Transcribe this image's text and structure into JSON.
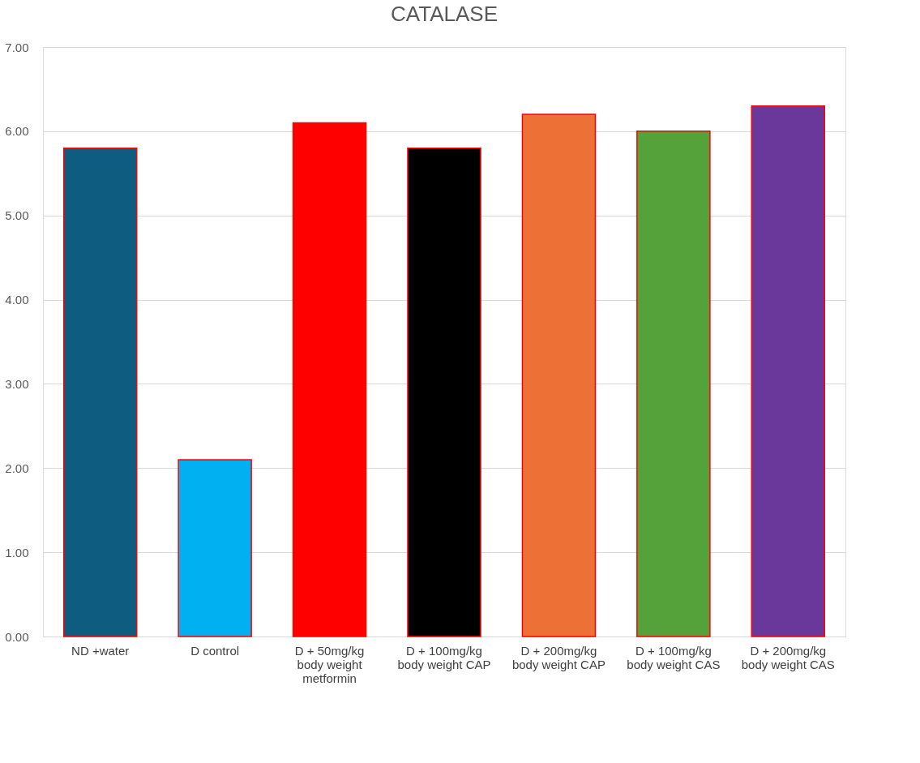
{
  "chart_data": {
    "type": "bar",
    "title": "CATALASE",
    "categories": [
      "ND +water",
      "D control",
      "D + 50mg/kg body weight metformin",
      "D + 100mg/kg body weight CAP",
      "D + 200mg/kg body weight CAP",
      "D + 100mg/kg body weight CAS",
      "D + 200mg/kg body weight CAS"
    ],
    "values": [
      5.8,
      2.1,
      6.1,
      5.8,
      6.2,
      6.0,
      6.3
    ],
    "colors": [
      "#0e5c80",
      "#00b0f0",
      "#ff0000",
      "#000000",
      "#ed7036",
      "#55a23a",
      "#6a389a"
    ],
    "ylim": [
      0,
      7
    ],
    "yticks": [
      {
        "value": 0,
        "label": "0.00"
      },
      {
        "value": 1,
        "label": "1.00"
      },
      {
        "value": 2,
        "label": "2.00"
      },
      {
        "value": 3,
        "label": "3.00"
      },
      {
        "value": 4,
        "label": "4.00"
      },
      {
        "value": 5,
        "label": "5.00"
      },
      {
        "value": 6,
        "label": "6.00"
      },
      {
        "value": 7,
        "label": "7.00"
      }
    ],
    "grid": "y",
    "legend": false
  }
}
